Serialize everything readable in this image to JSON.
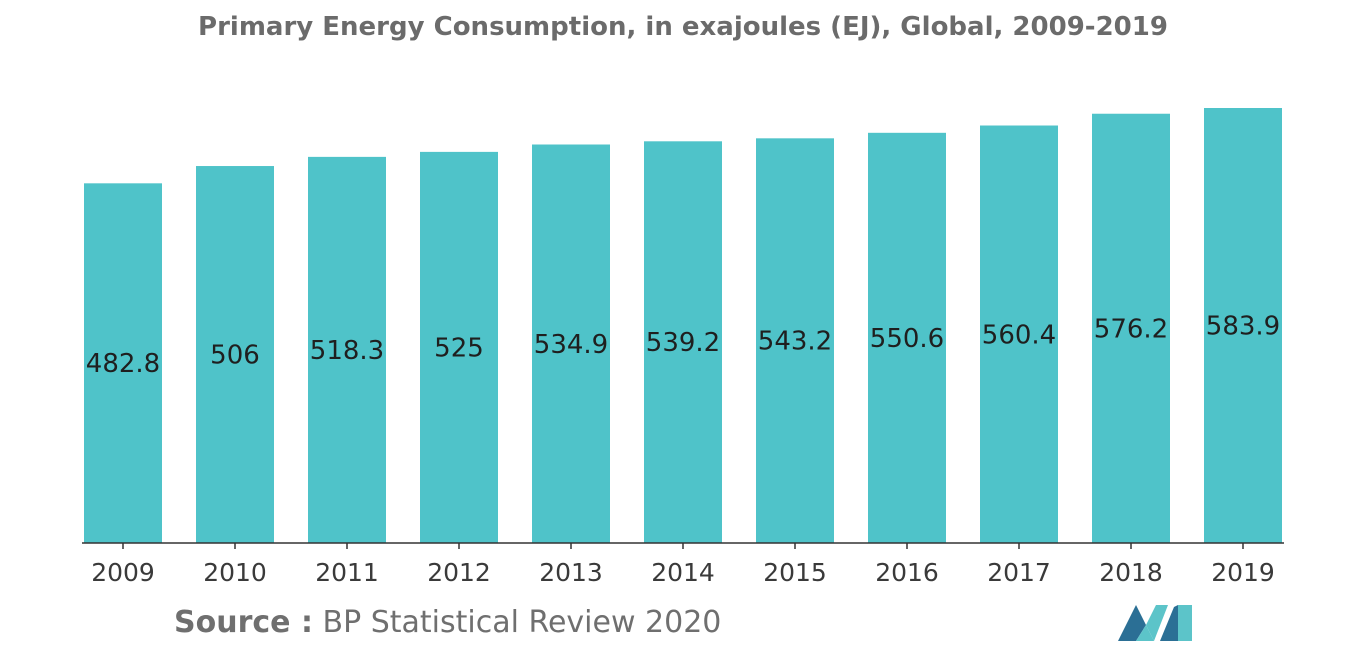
{
  "colors": {
    "bar": "#4fc3c9",
    "axis": "#333333",
    "logo_dark": "#2b6f95",
    "logo_light": "#5cc4c9"
  },
  "chart_data": {
    "type": "bar",
    "title": "Primary Energy Consumption, in exajoules (EJ), Global, 2009-2019",
    "xlabel": "",
    "ylabel": "",
    "categories": [
      "2009",
      "2010",
      "2011",
      "2012",
      "2013",
      "2014",
      "2015",
      "2016",
      "2017",
      "2018",
      "2019"
    ],
    "values": [
      482.8,
      506,
      518.3,
      525,
      534.9,
      539.2,
      543.2,
      550.6,
      560.4,
      576.2,
      583.9
    ],
    "value_labels": [
      "482.8",
      "506",
      "518.3",
      "525",
      "534.9",
      "539.2",
      "543.2",
      "550.6",
      "560.4",
      "576.2",
      "583.9"
    ],
    "ylim": [
      0,
      590
    ],
    "grid": false,
    "legend": "none"
  },
  "source": {
    "label": "Source :",
    "text": "BP Statistical Review 2020"
  },
  "logo": {
    "icon": "mordor-intelligence-logo-icon"
  }
}
